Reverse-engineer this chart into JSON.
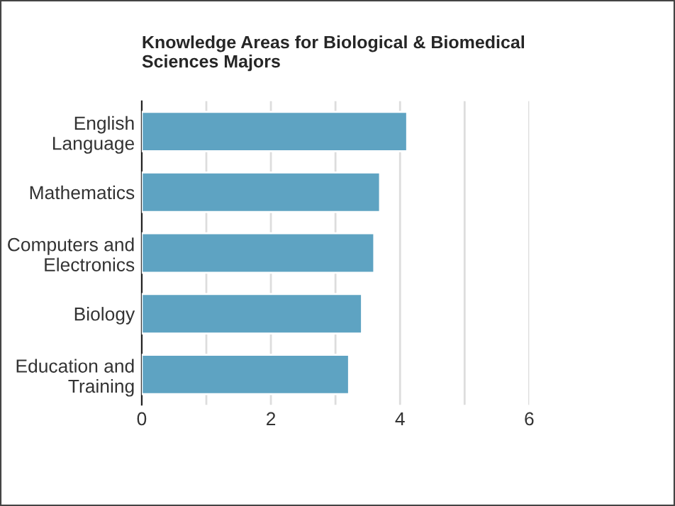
{
  "chart_data": {
    "type": "bar",
    "orientation": "horizontal",
    "title": "Knowledge Areas for Biological & Biomedical\nSciences Majors",
    "categories": [
      "English\nLanguage",
      "Mathematics",
      "Computers and\nElectronics",
      "Biology",
      "Education and\nTraining"
    ],
    "values": [
      4.11,
      3.69,
      3.6,
      3.41,
      3.21
    ],
    "color": "#5ea3c2",
    "xlim": [
      0,
      6
    ],
    "xticks": [
      0,
      {
        "value": 1,
        "label": null
      },
      2,
      {
        "value": 3,
        "label": null
      },
      4,
      {
        "value": 5,
        "label": null
      },
      6
    ],
    "grid": "x"
  }
}
